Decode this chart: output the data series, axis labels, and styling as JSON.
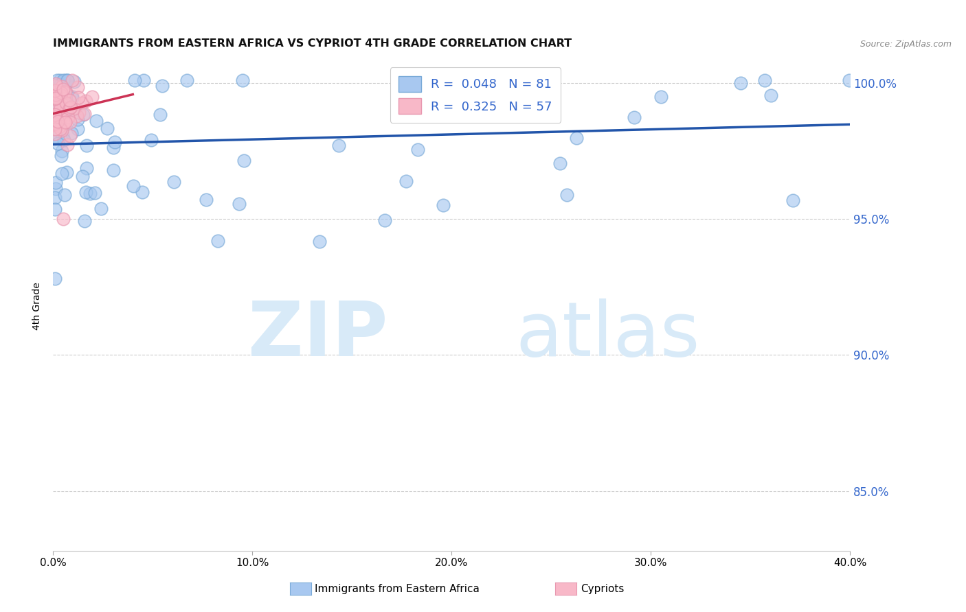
{
  "title": "IMMIGRANTS FROM EASTERN AFRICA VS CYPRIOT 4TH GRADE CORRELATION CHART",
  "source": "Source: ZipAtlas.com",
  "ylabel": "4th Grade",
  "xmin": 0.0,
  "xmax": 0.4,
  "ymin": 0.828,
  "ymax": 1.008,
  "blue_R": 0.048,
  "blue_N": 81,
  "pink_R": 0.325,
  "pink_N": 57,
  "legend_label_blue": "Immigrants from Eastern Africa",
  "legend_label_pink": "Cypriots",
  "blue_color": "#A8C8F0",
  "blue_edge_color": "#7AAAD8",
  "blue_line_color": "#2255AA",
  "pink_color": "#F8B8C8",
  "pink_edge_color": "#E898B0",
  "pink_line_color": "#CC3355",
  "grid_color": "#CCCCCC",
  "title_color": "#111111",
  "source_color": "#888888",
  "right_tick_color": "#3366CC",
  "watermark_color": "#D8EAF8",
  "yticks": [
    0.85,
    0.9,
    0.95,
    1.0
  ],
  "ytick_labels": [
    "85.0%",
    "90.0%",
    "95.0%",
    "100.0%"
  ]
}
